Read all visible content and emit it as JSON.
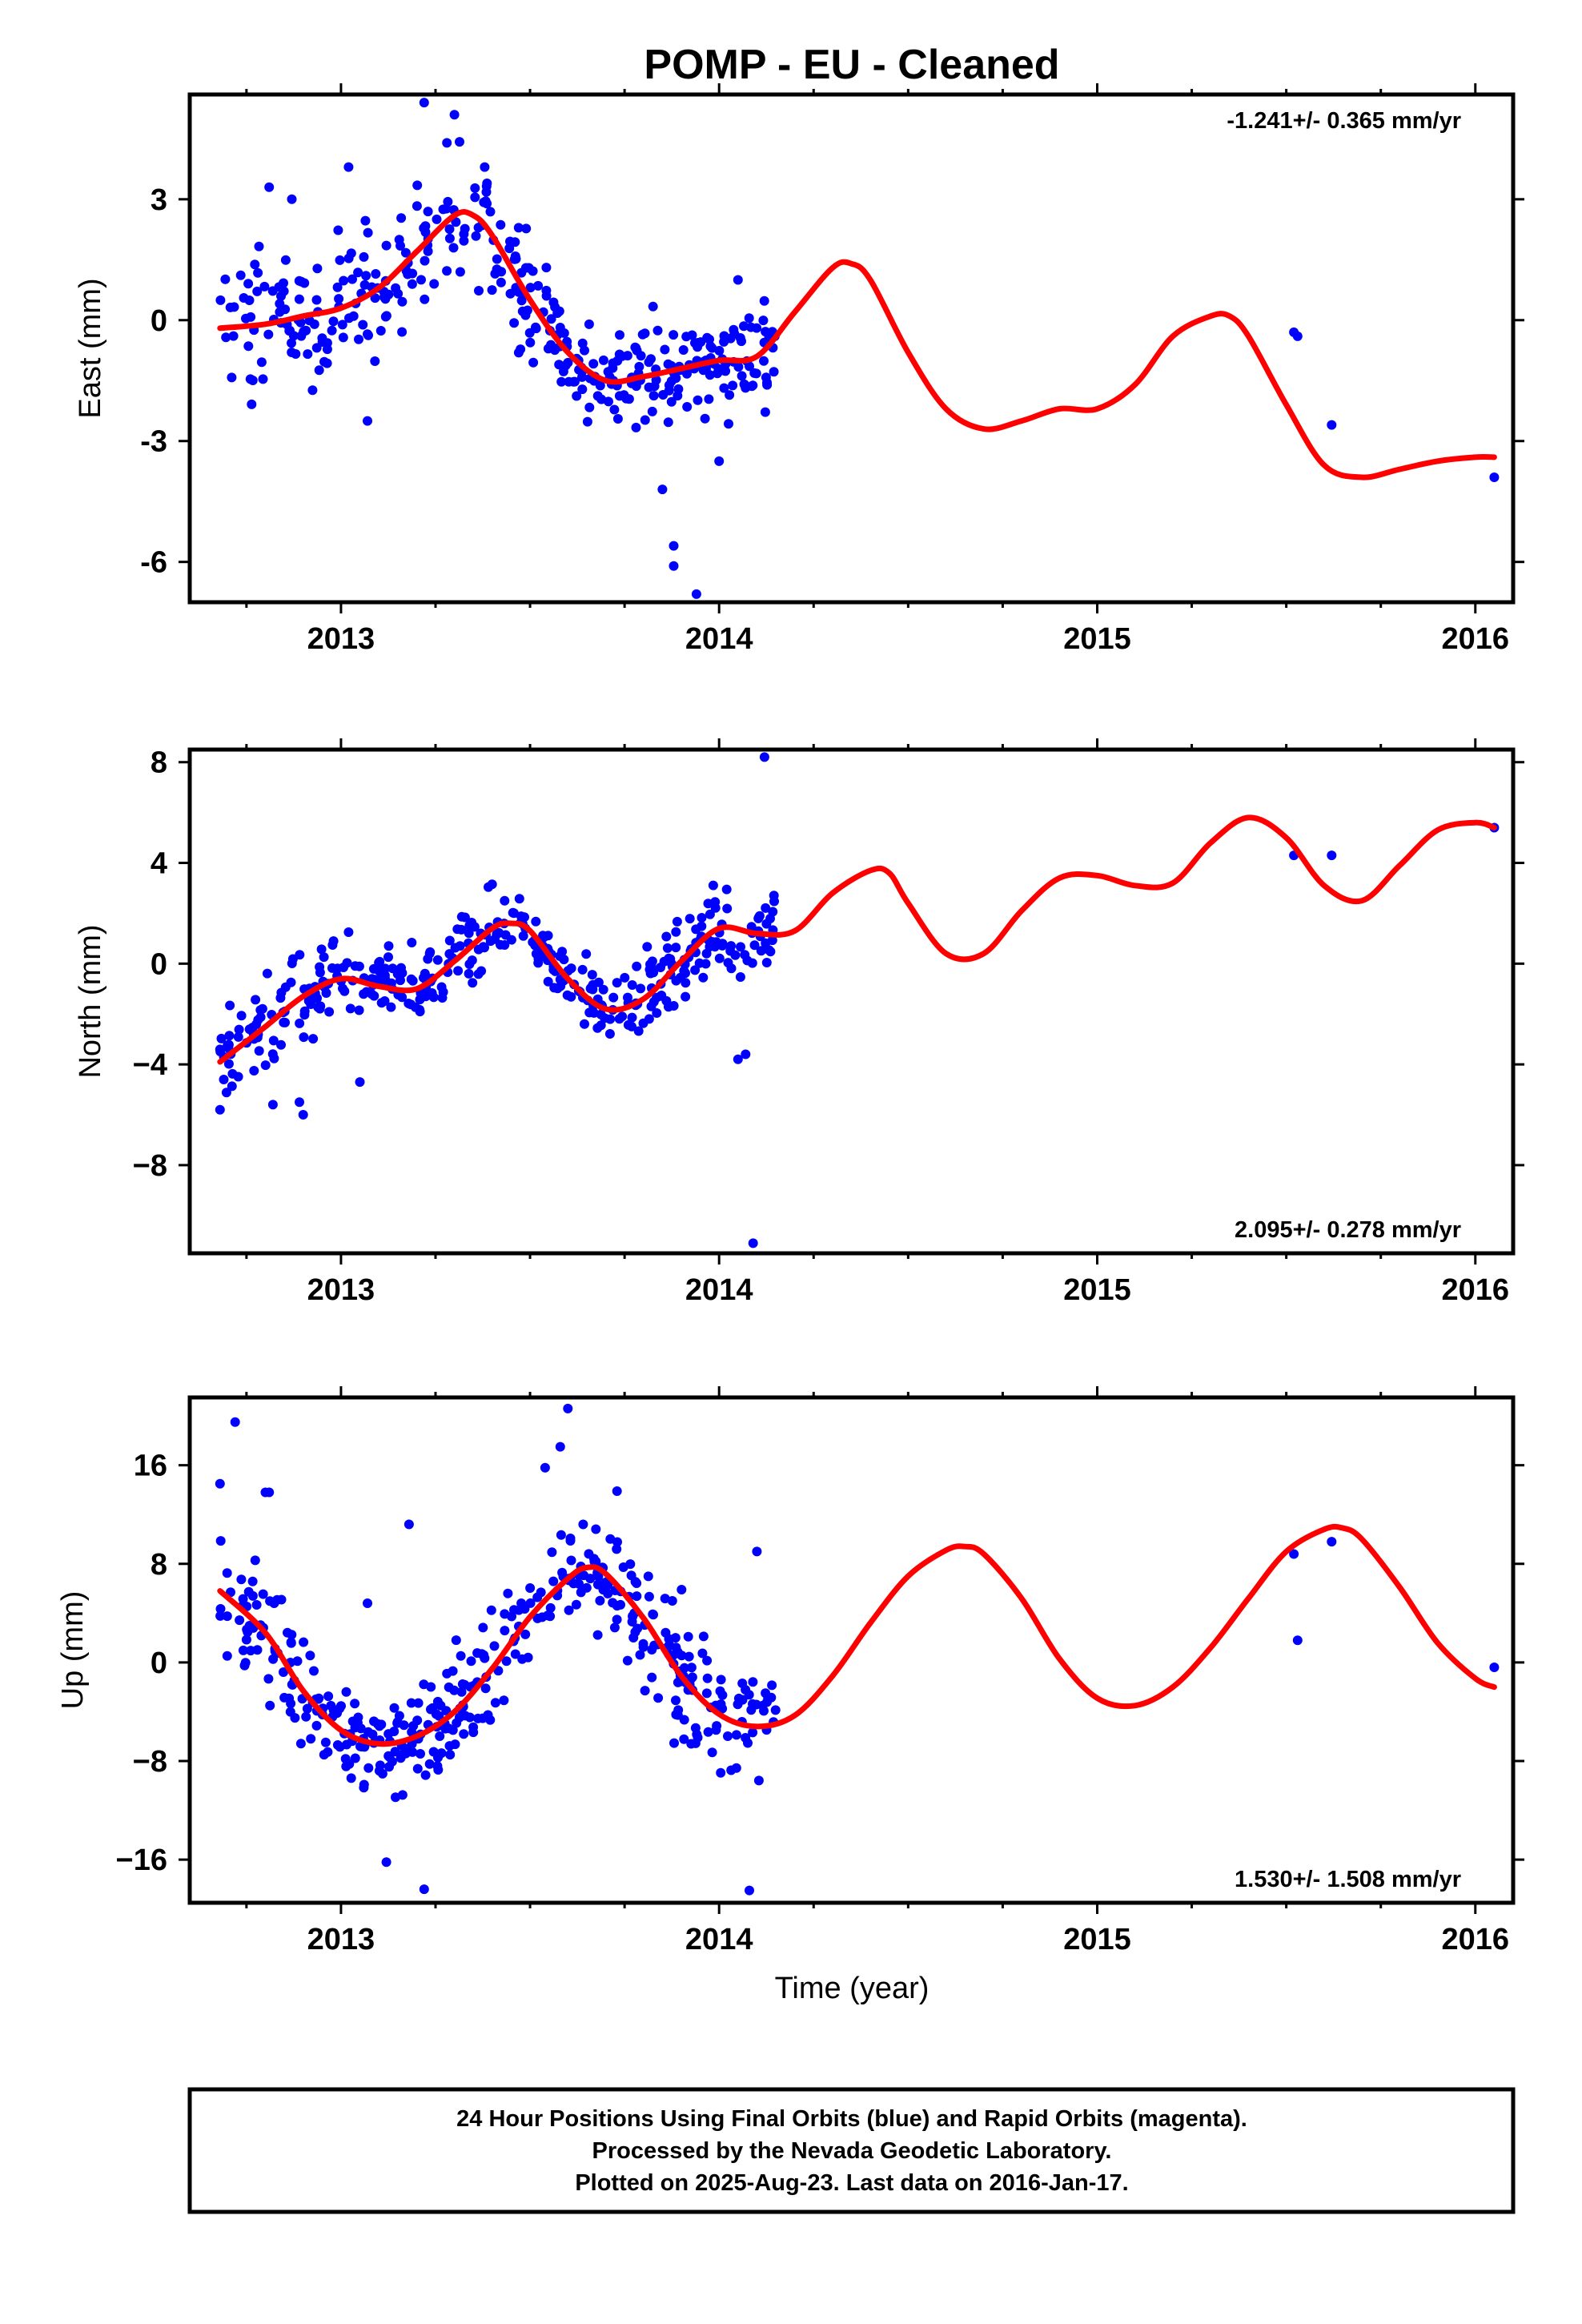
{
  "title": "POMP  - EU - Cleaned",
  "x_axis": {
    "range": [
      2012.6,
      2016.1
    ],
    "ticks": [
      2013,
      2014,
      2015,
      2016
    ],
    "tick_labels": [
      "2013",
      "2014",
      "2015",
      "2016"
    ],
    "minor_ticks": [
      2012.75,
      2013.25,
      2013.5,
      2013.75,
      2014.25,
      2014.5,
      2014.75,
      2015.25,
      2015.5,
      2015.75
    ],
    "label": "Time (year)"
  },
  "chart_data": [
    {
      "type": "scatter",
      "name": "east",
      "ylabel": "East (mm)",
      "ylim": [
        -7,
        5.6
      ],
      "yticks": [
        -6,
        -3,
        0,
        3
      ],
      "ytick_labels": [
        "-6",
        "-3",
        "0",
        "3"
      ],
      "rate_text": "-1.241+/- 0.365 mm/yr",
      "rate_position": "top-right",
      "grid": false,
      "point_color": "#0000ff",
      "curve_color": "#ff0000",
      "model_curve": {
        "x": [
          2012.68,
          2012.8,
          2012.9,
          2013.0,
          2013.1,
          2013.2,
          2013.3,
          2013.35,
          2013.4,
          2013.5,
          2013.6,
          2013.7,
          2013.8,
          2013.9,
          2014.0,
          2014.1,
          2014.2,
          2014.3,
          2014.35,
          2014.4,
          2014.5,
          2014.6,
          2014.7,
          2014.8,
          2014.9,
          2015.0,
          2015.1,
          2015.2,
          2015.3,
          2015.35,
          2015.4,
          2015.5,
          2015.6,
          2015.7,
          2015.8,
          2015.9,
          2016.0,
          2016.05
        ],
        "y": [
          -0.2,
          -0.1,
          0.1,
          0.3,
          0.8,
          1.7,
          2.6,
          2.6,
          2.1,
          0.5,
          -0.8,
          -1.5,
          -1.4,
          -1.2,
          -1.0,
          -0.9,
          0.2,
          1.3,
          1.4,
          1.0,
          -0.8,
          -2.2,
          -2.7,
          -2.5,
          -2.2,
          -2.2,
          -1.6,
          -0.4,
          0.1,
          0.1,
          -0.4,
          -2.1,
          -3.6,
          -3.9,
          -3.7,
          -3.5,
          -3.4,
          -3.4
        ]
      },
      "clusters": [
        {
          "x0": 2012.68,
          "x1": 2013.0,
          "n": 75,
          "spread": 1.2
        },
        {
          "x0": 2013.0,
          "x1": 2013.15,
          "n": 35,
          "spread": 1.2
        },
        {
          "x0": 2013.15,
          "x1": 2013.5,
          "n": 85,
          "spread": 1.1
        },
        {
          "x0": 2013.5,
          "x1": 2013.65,
          "n": 45,
          "spread": 0.9
        },
        {
          "x0": 2013.65,
          "x1": 2014.15,
          "n": 150,
          "spread": 0.9
        }
      ],
      "points": {
        "x": [
          2013.22,
          2013.28,
          2013.3,
          2013.38,
          2013.85,
          2013.88,
          2013.88,
          2013.94,
          2014.0,
          2014.05,
          2015.52,
          2015.53,
          2015.62,
          2016.05,
          2012.81,
          2012.87,
          2013.02,
          2013.07
        ],
        "y": [
          5.4,
          4.4,
          5.1,
          3.8,
          -4.2,
          -5.6,
          -6.1,
          -6.8,
          -3.5,
          1.0,
          -0.3,
          -0.4,
          -2.6,
          -3.9,
          3.3,
          3.0,
          3.8,
          -2.5
        ]
      }
    },
    {
      "type": "scatter",
      "name": "north",
      "ylabel": "North (mm)",
      "ylim": [
        -11.5,
        8.5
      ],
      "yticks": [
        -8,
        -4,
        0,
        4,
        8
      ],
      "ytick_labels": [
        "−8",
        "−4",
        "0",
        "4",
        "8"
      ],
      "rate_text": "2.095+/- 0.278 mm/yr",
      "rate_position": "bottom-right",
      "grid": false,
      "point_color": "#0000ff",
      "curve_color": "#ff0000",
      "model_curve": {
        "x": [
          2012.68,
          2012.8,
          2012.9,
          2013.0,
          2013.1,
          2013.2,
          2013.3,
          2013.4,
          2013.45,
          2013.5,
          2013.6,
          2013.7,
          2013.8,
          2013.9,
          2014.0,
          2014.1,
          2014.2,
          2014.3,
          2014.4,
          2014.45,
          2014.5,
          2014.6,
          2014.7,
          2014.8,
          2014.9,
          2015.0,
          2015.1,
          2015.2,
          2015.3,
          2015.4,
          2015.5,
          2015.6,
          2015.7,
          2015.8,
          2015.9,
          2016.0,
          2016.05
        ],
        "y": [
          -3.9,
          -2.5,
          -1.3,
          -0.6,
          -0.9,
          -1.0,
          0.1,
          1.4,
          1.6,
          1.3,
          -0.6,
          -1.8,
          -1.4,
          0.1,
          1.4,
          1.2,
          1.3,
          2.8,
          3.7,
          3.6,
          2.4,
          0.4,
          0.4,
          2.1,
          3.4,
          3.5,
          3.1,
          3.2,
          4.8,
          5.8,
          5.0,
          3.1,
          2.5,
          3.9,
          5.3,
          5.6,
          5.4
        ]
      },
      "clusters": [
        {
          "x0": 2012.68,
          "x1": 2012.95,
          "n": 70,
          "spread": 1.3
        },
        {
          "x0": 2012.95,
          "x1": 2013.25,
          "n": 80,
          "spread": 1.1
        },
        {
          "x0": 2013.25,
          "x1": 2013.6,
          "n": 90,
          "spread": 1.0
        },
        {
          "x0": 2013.6,
          "x1": 2013.8,
          "n": 50,
          "spread": 1.0
        },
        {
          "x0": 2013.8,
          "x1": 2014.15,
          "n": 105,
          "spread": 1.1
        }
      ],
      "points": {
        "x": [
          2012.68,
          2012.69,
          2012.82,
          2012.89,
          2012.9,
          2013.05,
          2014.05,
          2014.07,
          2014.09,
          2014.12,
          2015.52,
          2015.62,
          2016.05
        ],
        "y": [
          -5.8,
          -4.6,
          -5.6,
          -5.5,
          -6.0,
          -4.7,
          -3.8,
          -3.6,
          -11.1,
          8.2,
          4.3,
          4.3,
          5.4
        ]
      }
    },
    {
      "type": "scatter",
      "name": "up",
      "ylabel": "Up (mm)",
      "ylim": [
        -19.5,
        21.5
      ],
      "yticks": [
        -16,
        -8,
        0,
        8,
        16
      ],
      "ytick_labels": [
        "−16",
        "−8",
        "0",
        "8",
        "16"
      ],
      "rate_text": "1.530+/- 1.508 mm/yr",
      "rate_position": "bottom-right",
      "grid": false,
      "point_color": "#0000ff",
      "curve_color": "#ff0000",
      "model_curve": {
        "x": [
          2012.68,
          2012.8,
          2012.9,
          2013.0,
          2013.1,
          2013.2,
          2013.3,
          2013.4,
          2013.5,
          2013.6,
          2013.65,
          2013.7,
          2013.8,
          2013.9,
          2014.0,
          2014.1,
          2014.2,
          2014.3,
          2014.4,
          2014.5,
          2014.6,
          2014.65,
          2014.7,
          2014.8,
          2014.9,
          2015.0,
          2015.1,
          2015.2,
          2015.3,
          2015.4,
          2015.5,
          2015.6,
          2015.65,
          2015.7,
          2015.8,
          2015.9,
          2016.0,
          2016.05
        ],
        "y": [
          5.8,
          2.4,
          -2.3,
          -5.5,
          -6.6,
          -6.0,
          -4.0,
          -0.5,
          3.7,
          6.8,
          7.7,
          7.2,
          3.6,
          -1.1,
          -4.2,
          -5.2,
          -4.3,
          -1.1,
          3.2,
          7.0,
          9.1,
          9.4,
          8.8,
          5.2,
          0.3,
          -2.9,
          -3.5,
          -2.0,
          1.2,
          5.2,
          9.0,
          10.8,
          10.9,
          10.0,
          6.1,
          1.6,
          -1.3,
          -2.0
        ]
      },
      "clusters": [
        {
          "x0": 2012.68,
          "x1": 2012.95,
          "n": 70,
          "spread": 3.2
        },
        {
          "x0": 2012.95,
          "x1": 2013.3,
          "n": 110,
          "spread": 3.2
        },
        {
          "x0": 2013.3,
          "x1": 2013.8,
          "n": 130,
          "spread": 3.5
        },
        {
          "x0": 2013.8,
          "x1": 2014.15,
          "n": 100,
          "spread": 3.4
        }
      ],
      "points": {
        "x": [
          2012.68,
          2012.72,
          2012.8,
          2012.81,
          2013.07,
          2013.12,
          2013.18,
          2013.22,
          2013.54,
          2013.58,
          2013.6,
          2013.73,
          2014.08,
          2014.1,
          2015.52,
          2015.53,
          2015.62,
          2016.05
        ],
        "y": [
          14.5,
          19.5,
          13.8,
          13.8,
          4.8,
          -16.2,
          11.2,
          -18.4,
          15.8,
          17.5,
          20.6,
          13.9,
          -18.5,
          9.0,
          8.8,
          1.8,
          9.8,
          -0.4
        ]
      }
    }
  ],
  "footer": {
    "line1": "24 Hour Positions Using Final Orbits (blue) and Rapid Orbits (magenta).",
    "line2": "Processed by the Nevada Geodetic Laboratory.",
    "line3": "Plotted on 2025-Aug-23. Last data on 2016-Jan-17."
  }
}
